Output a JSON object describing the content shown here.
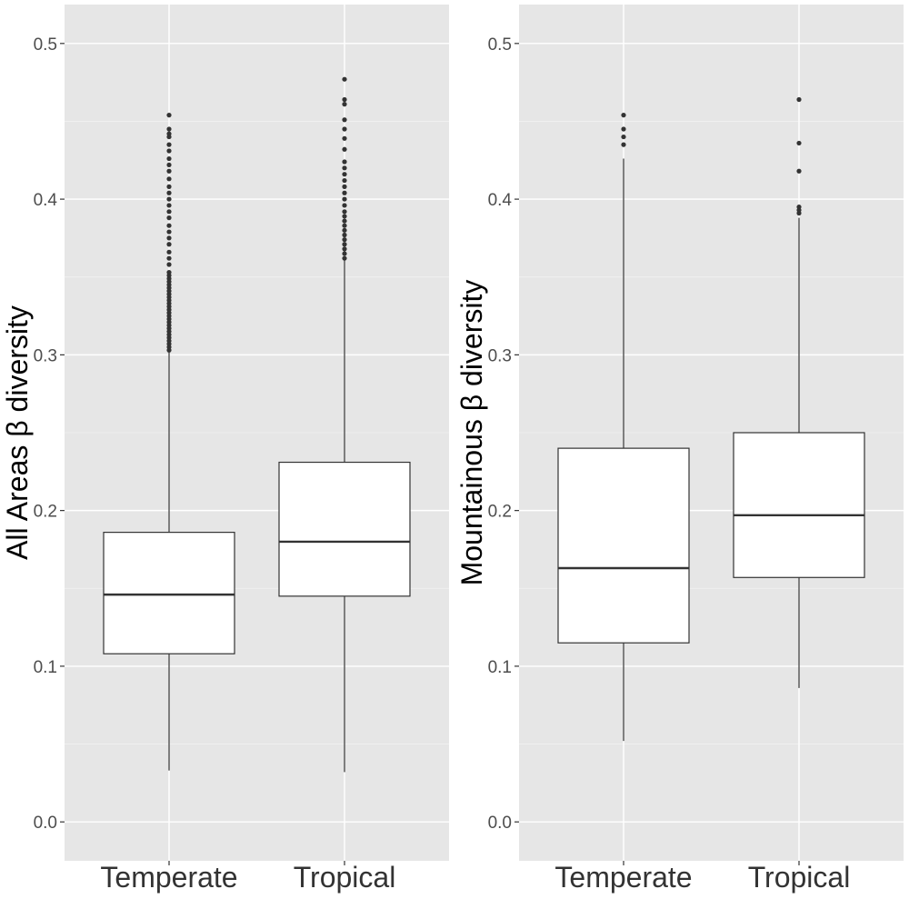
{
  "chart_data": [
    {
      "type": "box",
      "ylabel": "All Areas β diversity",
      "ylim": [
        -0.025,
        0.525
      ],
      "yticks": [
        "0.0",
        "0.1",
        "0.2",
        "0.3",
        "0.4",
        "0.5"
      ],
      "categories": [
        "Temperate",
        "Tropical"
      ],
      "grid": true,
      "boxes": [
        {
          "category": "Temperate",
          "whisker_low": 0.033,
          "q1": 0.108,
          "median": 0.146,
          "q3": 0.186,
          "whisker_high": 0.302,
          "outliers": [
            0.303,
            0.305,
            0.307,
            0.309,
            0.311,
            0.313,
            0.315,
            0.317,
            0.319,
            0.321,
            0.323,
            0.325,
            0.327,
            0.329,
            0.331,
            0.333,
            0.335,
            0.337,
            0.339,
            0.341,
            0.343,
            0.345,
            0.347,
            0.349,
            0.351,
            0.353,
            0.358,
            0.362,
            0.366,
            0.371,
            0.375,
            0.379,
            0.383,
            0.388,
            0.392,
            0.396,
            0.4,
            0.404,
            0.408,
            0.413,
            0.418,
            0.422,
            0.426,
            0.431,
            0.435,
            0.44,
            0.442,
            0.445,
            0.454
          ]
        },
        {
          "category": "Tropical",
          "whisker_low": 0.032,
          "q1": 0.145,
          "median": 0.18,
          "q3": 0.231,
          "whisker_high": 0.361,
          "outliers": [
            0.362,
            0.365,
            0.368,
            0.371,
            0.374,
            0.377,
            0.38,
            0.383,
            0.386,
            0.389,
            0.392,
            0.396,
            0.4,
            0.404,
            0.408,
            0.412,
            0.416,
            0.42,
            0.424,
            0.432,
            0.439,
            0.445,
            0.451,
            0.461,
            0.464,
            0.477
          ]
        }
      ]
    },
    {
      "type": "box",
      "ylabel": "Mountainous β diversity",
      "ylim": [
        -0.025,
        0.525
      ],
      "yticks": [
        "0.0",
        "0.1",
        "0.2",
        "0.3",
        "0.4",
        "0.5"
      ],
      "categories": [
        "Temperate",
        "Tropical"
      ],
      "grid": true,
      "boxes": [
        {
          "category": "Temperate",
          "whisker_low": 0.052,
          "q1": 0.115,
          "median": 0.163,
          "q3": 0.24,
          "whisker_high": 0.426,
          "outliers": [
            0.435,
            0.44,
            0.445,
            0.454
          ]
        },
        {
          "category": "Tropical",
          "whisker_low": 0.086,
          "q1": 0.157,
          "median": 0.197,
          "q3": 0.25,
          "whisker_high": 0.388,
          "outliers": [
            0.391,
            0.393,
            0.395,
            0.418,
            0.436,
            0.464
          ]
        }
      ]
    }
  ]
}
